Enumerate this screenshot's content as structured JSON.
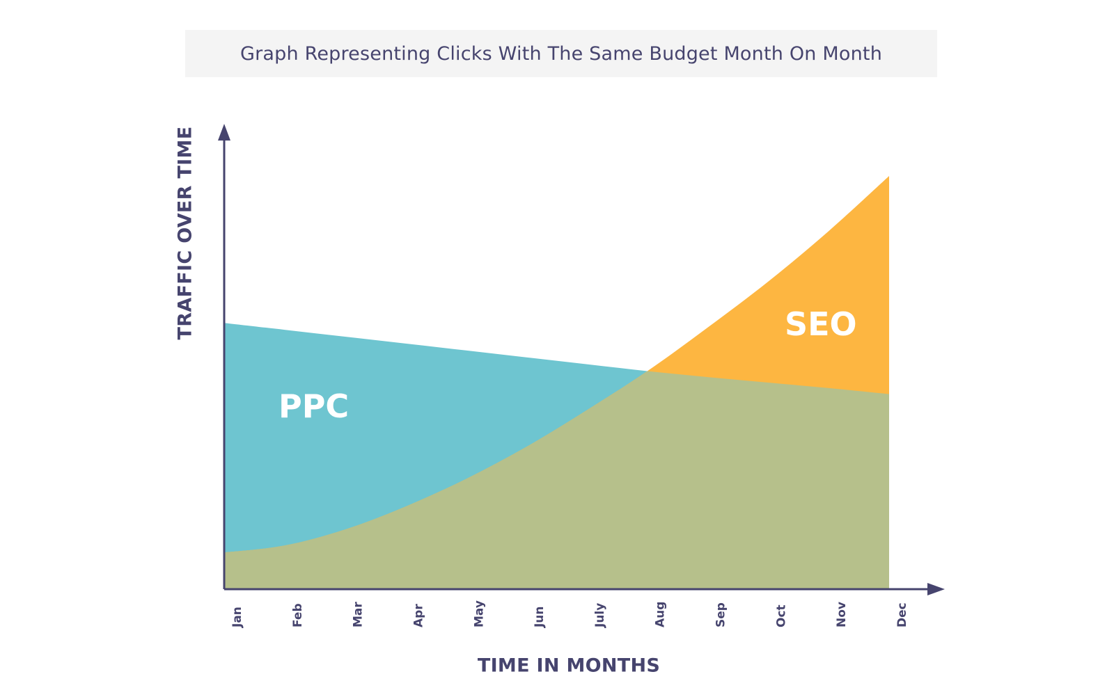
{
  "chart_data": {
    "type": "area",
    "title": "Graph Representing Clicks With The Same Budget Month On Month",
    "xlabel": "TIME IN MONTHS",
    "ylabel": "TRAFFIC OVER TIME",
    "categories": [
      "Jan",
      "Feb",
      "Mar",
      "Apr",
      "May",
      "Jun",
      "July",
      "Aug",
      "Sep",
      "Oct",
      "Nov",
      "Dec"
    ],
    "ylim": [
      0,
      100
    ],
    "grid": false,
    "legend": "none",
    "series": [
      {
        "name": "PPC",
        "color": "#6ec5d0",
        "values": [
          58,
          56.5,
          55,
          53.5,
          52,
          50.5,
          49,
          47.5,
          46.2,
          45,
          43.8,
          42.5
        ]
      },
      {
        "name": "SEO",
        "color": "#fdb641",
        "values": [
          8,
          9.5,
          13,
          18,
          24,
          31,
          39,
          47.5,
          57,
          67,
          78,
          90
        ]
      }
    ],
    "overlap_color": "#b6c08b"
  }
}
